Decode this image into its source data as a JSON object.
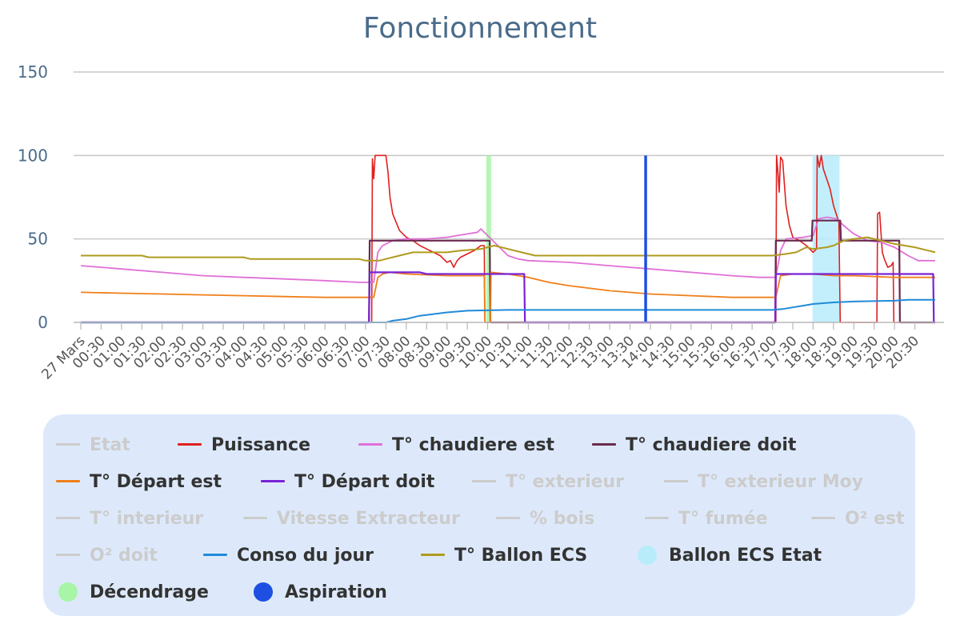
{
  "chart_data": {
    "type": "line",
    "title": "Fonctionnement",
    "ylim": [
      0,
      150
    ],
    "yticks": [
      0,
      50,
      100,
      150
    ],
    "grid": true,
    "x_start": "27 Mars 00:00",
    "x_end": "27 Mars 21:00",
    "xticks": [
      "27 Mars",
      "00:30",
      "01:00",
      "01:30",
      "02:00",
      "02:30",
      "03:00",
      "03:30",
      "04:00",
      "04:30",
      "05:00",
      "05:30",
      "06:00",
      "06:30",
      "07:00",
      "07:30",
      "08:00",
      "08:30",
      "09:00",
      "09:30",
      "10:00",
      "10:30",
      "11:00",
      "11:30",
      "12:00",
      "12:30",
      "13:00",
      "13:30",
      "14:00",
      "14:30",
      "15:00",
      "15:30",
      "16:00",
      "16:30",
      "17:00",
      "17:30",
      "18:00",
      "18:30",
      "19:00",
      "19:30",
      "20:00",
      "20:30"
    ],
    "legend_position": "bottom",
    "legend_items": [
      {
        "name": "Etat",
        "color": "#cccccc",
        "symbol": "line",
        "visible": false
      },
      {
        "name": "Puissance",
        "color": "#e02020",
        "symbol": "line",
        "visible": true
      },
      {
        "name": "T° chaudiere est",
        "color": "#e070d8",
        "symbol": "line",
        "visible": true
      },
      {
        "name": "T° chaudiere doit",
        "color": "#6b2a4f",
        "symbol": "line",
        "visible": true
      },
      {
        "name": "T° Départ est",
        "color": "#f07f1a",
        "symbol": "line",
        "visible": true
      },
      {
        "name": "T° Départ doit",
        "color": "#7a22d6",
        "symbol": "line",
        "visible": true
      },
      {
        "name": "T° exterieur",
        "color": "#cccccc",
        "symbol": "line",
        "visible": false
      },
      {
        "name": "T° exterieur Moy",
        "color": "#cccccc",
        "symbol": "line",
        "visible": false
      },
      {
        "name": "T° interieur",
        "color": "#cccccc",
        "symbol": "line",
        "visible": false
      },
      {
        "name": "Vitesse Extracteur",
        "color": "#cccccc",
        "symbol": "line",
        "visible": false
      },
      {
        "name": "% bois",
        "color": "#cccccc",
        "symbol": "line",
        "visible": false
      },
      {
        "name": "T° fumée",
        "color": "#cccccc",
        "symbol": "line",
        "visible": false
      },
      {
        "name": "O² est",
        "color": "#cccccc",
        "symbol": "line",
        "visible": false
      },
      {
        "name": "O² doit",
        "color": "#cccccc",
        "symbol": "line",
        "visible": false
      },
      {
        "name": "Conso du jour",
        "color": "#1f8ad8",
        "symbol": "line",
        "visible": true
      },
      {
        "name": "T° Ballon ECS",
        "color": "#b09a1e",
        "symbol": "line",
        "visible": true
      },
      {
        "name": "Ballon ECS Etat",
        "color": "#b8ecfb",
        "symbol": "dot",
        "visible": true
      },
      {
        "name": "Décendrage",
        "color": "#a8f5a8",
        "symbol": "dot",
        "visible": true
      },
      {
        "name": "Aspiration",
        "color": "#1f4fe0",
        "symbol": "dot",
        "visible": true
      }
    ],
    "bands": [
      {
        "name": "Décendrage",
        "color": "#a8f5a8",
        "from": "09:58",
        "to": "10:05",
        "value": 100
      },
      {
        "name": "Ballon ECS Etat",
        "color": "#b8ecfb",
        "from": "17:59",
        "to": "18:39",
        "value": 100
      }
    ],
    "spikes": [
      {
        "name": "Aspiration",
        "color": "#1f4fe0",
        "at": "13:53",
        "value": 100
      }
    ],
    "series": [
      {
        "name": "Puissance",
        "color": "#e02020",
        "width": 1.6,
        "points": [
          [
            "00:00",
            0
          ],
          [
            "07:09",
            0
          ],
          [
            "07:10",
            98
          ],
          [
            "07:12",
            86
          ],
          [
            "07:14",
            100
          ],
          [
            "07:30",
            100
          ],
          [
            "07:33",
            90
          ],
          [
            "07:36",
            75
          ],
          [
            "07:40",
            65
          ],
          [
            "07:45",
            60
          ],
          [
            "07:50",
            55
          ],
          [
            "08:00",
            51
          ],
          [
            "08:10",
            49
          ],
          [
            "08:20",
            46
          ],
          [
            "08:30",
            44
          ],
          [
            "08:40",
            42
          ],
          [
            "08:50",
            40
          ],
          [
            "09:00",
            36
          ],
          [
            "09:05",
            37
          ],
          [
            "09:10",
            33
          ],
          [
            "09:15",
            37
          ],
          [
            "09:20",
            39
          ],
          [
            "09:30",
            41
          ],
          [
            "09:40",
            43
          ],
          [
            "09:50",
            46
          ],
          [
            "09:55",
            46
          ],
          [
            "09:56",
            0
          ],
          [
            "17:05",
            0
          ],
          [
            "17:06",
            100
          ],
          [
            "17:08",
            90
          ],
          [
            "17:10",
            78
          ],
          [
            "17:12",
            99
          ],
          [
            "17:15",
            97
          ],
          [
            "17:20",
            70
          ],
          [
            "17:25",
            58
          ],
          [
            "17:30",
            51
          ],
          [
            "17:40",
            49
          ],
          [
            "17:50",
            46
          ],
          [
            "18:00",
            42
          ],
          [
            "18:05",
            44
          ],
          [
            "18:06",
            100
          ],
          [
            "18:09",
            93
          ],
          [
            "18:12",
            100
          ],
          [
            "18:15",
            92
          ],
          [
            "18:25",
            80
          ],
          [
            "18:30",
            70
          ],
          [
            "18:38",
            60
          ],
          [
            "18:40",
            0
          ],
          [
            "19:34",
            0
          ],
          [
            "19:35",
            65
          ],
          [
            "19:38",
            66
          ],
          [
            "19:42",
            42
          ],
          [
            "19:45",
            38
          ],
          [
            "19:50",
            33
          ],
          [
            "19:55",
            34
          ],
          [
            "19:58",
            36
          ],
          [
            "19:59",
            0
          ],
          [
            "21:00",
            0
          ]
        ]
      },
      {
        "name": "T° chaudiere est",
        "color": "#e070d8",
        "width": 1.8,
        "points": [
          [
            "00:00",
            34
          ],
          [
            "00:30",
            33
          ],
          [
            "01:00",
            32
          ],
          [
            "02:00",
            30
          ],
          [
            "03:00",
            28
          ],
          [
            "04:00",
            27
          ],
          [
            "05:00",
            26
          ],
          [
            "06:00",
            25
          ],
          [
            "06:50",
            24
          ],
          [
            "07:00",
            24
          ],
          [
            "07:12",
            24
          ],
          [
            "07:18",
            42
          ],
          [
            "07:25",
            46
          ],
          [
            "07:40",
            49
          ],
          [
            "08:00",
            50
          ],
          [
            "08:30",
            50
          ],
          [
            "09:00",
            51
          ],
          [
            "09:30",
            53
          ],
          [
            "09:45",
            54
          ],
          [
            "09:50",
            56
          ],
          [
            "10:00",
            52
          ],
          [
            "10:15",
            46
          ],
          [
            "10:30",
            40
          ],
          [
            "10:45",
            38
          ],
          [
            "11:00",
            37
          ],
          [
            "12:00",
            36
          ],
          [
            "13:00",
            34
          ],
          [
            "14:00",
            32
          ],
          [
            "15:00",
            30
          ],
          [
            "16:00",
            28
          ],
          [
            "16:40",
            27
          ],
          [
            "17:05",
            27
          ],
          [
            "17:12",
            43
          ],
          [
            "17:20",
            50
          ],
          [
            "17:45",
            51
          ],
          [
            "18:00",
            52
          ],
          [
            "18:08",
            62
          ],
          [
            "18:20",
            63
          ],
          [
            "18:35",
            62
          ],
          [
            "18:45",
            58
          ],
          [
            "19:00",
            53
          ],
          [
            "19:20",
            49
          ],
          [
            "19:40",
            48
          ],
          [
            "20:00",
            45
          ],
          [
            "20:20",
            40
          ],
          [
            "20:35",
            37
          ],
          [
            "21:00",
            37
          ]
        ]
      },
      {
        "name": "T° chaudiere doit",
        "color": "#6b2a4f",
        "width": 2.2,
        "points": [
          [
            "00:00",
            0
          ],
          [
            "07:05",
            0
          ],
          [
            "07:06",
            49
          ],
          [
            "10:03",
            49
          ],
          [
            "10:04",
            0
          ],
          [
            "17:04",
            0
          ],
          [
            "17:05",
            49
          ],
          [
            "17:58",
            49
          ],
          [
            "17:59",
            61
          ],
          [
            "18:40",
            61
          ],
          [
            "18:41",
            49
          ],
          [
            "20:07",
            49
          ],
          [
            "20:08",
            0
          ],
          [
            "21:00",
            0
          ]
        ]
      },
      {
        "name": "T° Départ est",
        "color": "#f07f1a",
        "width": 1.8,
        "points": [
          [
            "00:00",
            18
          ],
          [
            "01:00",
            17.5
          ],
          [
            "02:00",
            17
          ],
          [
            "03:00",
            16.5
          ],
          [
            "04:00",
            16
          ],
          [
            "05:00",
            15.5
          ],
          [
            "06:00",
            15
          ],
          [
            "07:00",
            15
          ],
          [
            "07:12",
            15
          ],
          [
            "07:18",
            27
          ],
          [
            "07:25",
            29
          ],
          [
            "07:35",
            30
          ],
          [
            "08:00",
            29
          ],
          [
            "09:00",
            28
          ],
          [
            "09:55",
            28
          ],
          [
            "09:56",
            0
          ],
          [
            "10:04",
            0
          ],
          [
            "10:05",
            30
          ],
          [
            "10:30",
            29
          ],
          [
            "11:00",
            27
          ],
          [
            "11:30",
            24
          ],
          [
            "12:00",
            22
          ],
          [
            "13:00",
            19
          ],
          [
            "14:00",
            17
          ],
          [
            "15:00",
            16
          ],
          [
            "16:00",
            15
          ],
          [
            "17:05",
            15
          ],
          [
            "17:12",
            28
          ],
          [
            "17:30",
            29
          ],
          [
            "18:00",
            29
          ],
          [
            "18:30",
            28
          ],
          [
            "19:00",
            28
          ],
          [
            "20:00",
            27
          ],
          [
            "21:00",
            27
          ]
        ]
      },
      {
        "name": "T° Départ doit",
        "color": "#7a22d6",
        "width": 2.2,
        "points": [
          [
            "00:00",
            0
          ],
          [
            "07:05",
            0
          ],
          [
            "07:06",
            30
          ],
          [
            "08:20",
            30
          ],
          [
            "08:30",
            29
          ],
          [
            "10:54",
            29
          ],
          [
            "10:55",
            0
          ],
          [
            "17:04",
            0
          ],
          [
            "17:05",
            29
          ],
          [
            "20:57",
            29
          ],
          [
            "20:58",
            0
          ],
          [
            "21:00",
            0
          ]
        ]
      },
      {
        "name": "Conso du jour",
        "color": "#1f8ad8",
        "width": 2,
        "points": [
          [
            "00:00",
            0
          ],
          [
            "07:30",
            0
          ],
          [
            "07:40",
            1
          ],
          [
            "08:00",
            2
          ],
          [
            "08:10",
            3
          ],
          [
            "08:20",
            4
          ],
          [
            "08:40",
            5
          ],
          [
            "09:00",
            6
          ],
          [
            "09:30",
            7
          ],
          [
            "10:30",
            7.5
          ],
          [
            "17:00",
            7.5
          ],
          [
            "17:15",
            8
          ],
          [
            "17:30",
            9
          ],
          [
            "17:45",
            10
          ],
          [
            "18:00",
            11
          ],
          [
            "18:30",
            12
          ],
          [
            "19:00",
            12.5
          ],
          [
            "20:00",
            13
          ],
          [
            "20:20",
            13.5
          ],
          [
            "21:00",
            13.5
          ]
        ]
      },
      {
        "name": "T° Ballon ECS",
        "color": "#b09a1e",
        "width": 2,
        "points": [
          [
            "00:00",
            40
          ],
          [
            "01:30",
            40
          ],
          [
            "01:40",
            39
          ],
          [
            "04:00",
            39
          ],
          [
            "04:10",
            38
          ],
          [
            "06:50",
            38
          ],
          [
            "07:00",
            37
          ],
          [
            "07:20",
            37
          ],
          [
            "07:30",
            38
          ],
          [
            "07:50",
            40
          ],
          [
            "08:10",
            42
          ],
          [
            "08:30",
            42
          ],
          [
            "09:00",
            42
          ],
          [
            "09:20",
            43
          ],
          [
            "09:50",
            44
          ],
          [
            "10:10",
            46
          ],
          [
            "10:30",
            44
          ],
          [
            "10:50",
            42
          ],
          [
            "11:10",
            40
          ],
          [
            "12:00",
            40
          ],
          [
            "13:00",
            40
          ],
          [
            "14:00",
            40
          ],
          [
            "15:00",
            40
          ],
          [
            "16:00",
            40
          ],
          [
            "17:00",
            40
          ],
          [
            "17:20",
            41
          ],
          [
            "17:35",
            42
          ],
          [
            "17:50",
            45
          ],
          [
            "18:00",
            44
          ],
          [
            "18:20",
            45
          ],
          [
            "18:30",
            46
          ],
          [
            "18:45",
            49
          ],
          [
            "19:00",
            50
          ],
          [
            "19:20",
            51
          ],
          [
            "19:40",
            49
          ],
          [
            "20:00",
            47
          ],
          [
            "20:30",
            45
          ],
          [
            "20:50",
            43
          ],
          [
            "21:00",
            42
          ]
        ]
      }
    ]
  }
}
